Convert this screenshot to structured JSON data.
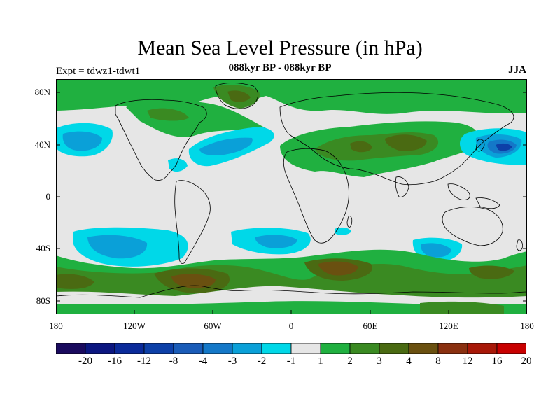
{
  "title": "Mean Sea Level Pressure (in hPa)",
  "experiment": "Expt = tdwz1-tdwt1",
  "period": "088kyr BP - 088kyr BP",
  "season": "JJA",
  "lat_ticks": [
    "80N",
    "40N",
    "0",
    "40S",
    "80S"
  ],
  "lon_ticks": [
    "180",
    "120W",
    "60W",
    "0",
    "60E",
    "120E",
    "180"
  ],
  "colorbar": {
    "labels": [
      "-20",
      "-16",
      "-12",
      "-8",
      "-4",
      "-3",
      "-2",
      "-1",
      "1",
      "2",
      "3",
      "4",
      "8",
      "12",
      "16",
      "20"
    ],
    "colors": [
      "#1a0a5e",
      "#0b1680",
      "#0a2a9a",
      "#0d40a8",
      "#1a5cb8",
      "#1478c8",
      "#0aa0d8",
      "#00d8e8",
      "#e6e6e6",
      "#20b040",
      "#3a8a22",
      "#4a6a12",
      "#6a5010",
      "#8a3010",
      "#a81808",
      "#c80000"
    ]
  },
  "map_colors": {
    "neutral": "#e6e6e6",
    "pos1": "#20b040",
    "pos2": "#3a8a22",
    "pos3": "#4a6a12",
    "pos4": "#6a5010",
    "pos5": "#7a4012",
    "neg1": "#00d8e8",
    "neg2": "#0aa0d8",
    "neg3": "#1478c8",
    "neg4": "#1a5cb8",
    "neg5": "#0d40a8"
  }
}
